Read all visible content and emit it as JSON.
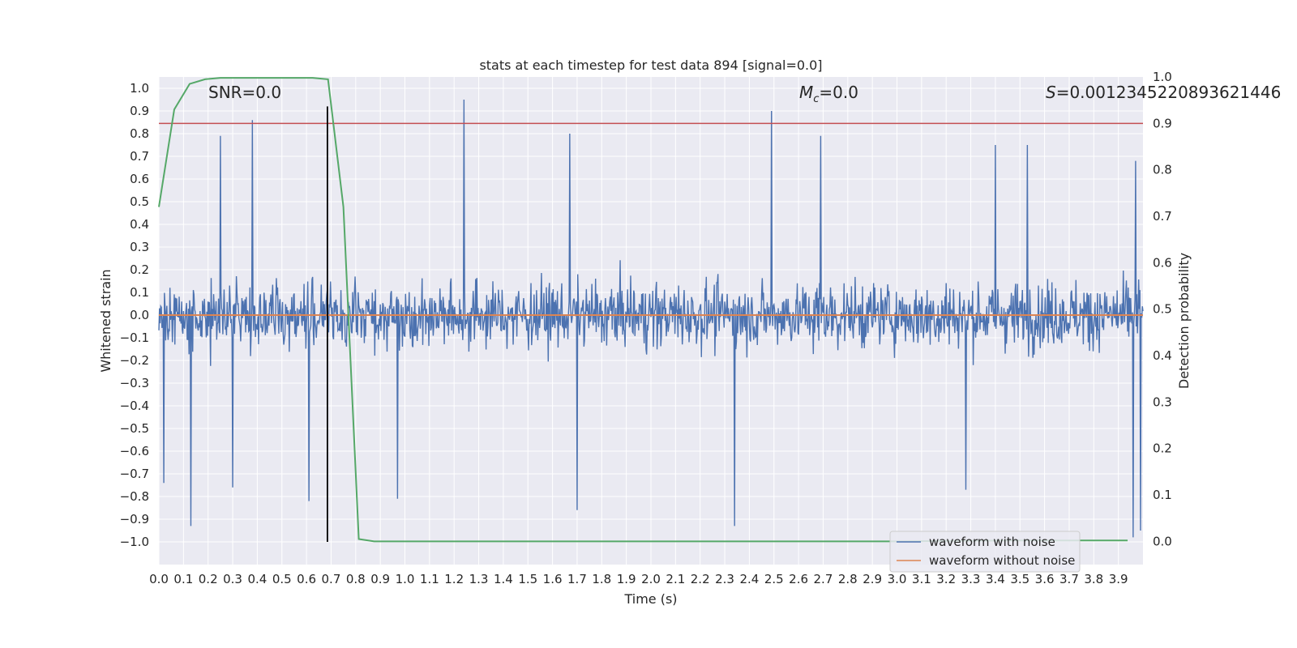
{
  "chart_data": {
    "type": "line",
    "title": "stats at each timestep for test data 894 [signal=0.0]",
    "xlabel": "Time (s)",
    "ylabel": "Whitened strain",
    "y2label": "Detection probability",
    "xlim": [
      0.0,
      4.0
    ],
    "ylim": [
      -1.1,
      1.05
    ],
    "y2lim": [
      -0.05,
      1.0
    ],
    "x_ticks": [
      0.0,
      0.1,
      0.2,
      0.3,
      0.4,
      0.5,
      0.6,
      0.7,
      0.8,
      0.9,
      1.0,
      1.1,
      1.2,
      1.3,
      1.4,
      1.5,
      1.6,
      1.7,
      1.8,
      1.9,
      2.0,
      2.1,
      2.2,
      2.3,
      2.4,
      2.5,
      2.6,
      2.7,
      2.8,
      2.9,
      3.0,
      3.1,
      3.2,
      3.3,
      3.4,
      3.5,
      3.6,
      3.7,
      3.8,
      3.9
    ],
    "y_ticks": [
      -1.0,
      -0.9,
      -0.8,
      -0.7,
      -0.6,
      -0.5,
      -0.4,
      -0.3,
      -0.2,
      -0.1,
      0.0,
      0.1,
      0.2,
      0.3,
      0.4,
      0.5,
      0.6,
      0.7,
      0.8,
      0.9,
      1.0
    ],
    "y2_ticks": [
      0.0,
      0.1,
      0.2,
      0.3,
      0.4,
      0.5,
      0.6,
      0.7,
      0.8,
      0.9,
      1.0
    ],
    "grid": true,
    "legend_placement": "lower-right",
    "annotations": {
      "snr": "SNR=0.0",
      "mc": "=0.0",
      "mc_symbol": "M",
      "mc_subscript": "c",
      "s": "=0.0012345220893621446",
      "s_symbol": "S"
    },
    "series": [
      {
        "name": "waveform with noise",
        "color": "#4c72b0",
        "axis": "left",
        "description_envelope": {
          "peaks_x": [
            0.25,
            0.38,
            1.24,
            1.67,
            2.49,
            2.69,
            3.4,
            3.53,
            3.97
          ],
          "peaks_y": [
            0.79,
            0.86,
            0.95,
            0.8,
            0.9,
            0.79,
            0.75,
            0.75,
            0.68
          ],
          "troughs_x": [
            0.02,
            0.13,
            0.3,
            0.61,
            0.97,
            1.7,
            2.34,
            3.28,
            3.96,
            3.99
          ],
          "troughs_y": [
            -0.74,
            -0.93,
            -0.76,
            -0.82,
            -0.81,
            -0.86,
            -0.93,
            -0.77,
            -0.98,
            -0.95
          ]
        }
      },
      {
        "name": "waveform without noise",
        "color": "#dd8452",
        "axis": "left",
        "x": [
          0.0,
          4.0
        ],
        "y": [
          0.0,
          0.0
        ]
      },
      {
        "color": "#55a868",
        "axis": "right",
        "x": [
          0.0,
          0.0625,
          0.125,
          0.1875,
          0.25,
          0.3125,
          0.375,
          0.4375,
          0.5,
          0.5625,
          0.625,
          0.6875,
          0.75,
          0.8125,
          0.875,
          0.9375,
          1.0,
          1.5,
          2.0,
          2.5,
          3.0,
          3.5,
          3.9375
        ],
        "y": [
          0.72,
          0.93,
          0.985,
          0.995,
          0.998,
          0.998,
          0.998,
          0.998,
          0.998,
          0.998,
          0.998,
          0.995,
          0.72,
          0.005,
          0.0,
          0.0,
          0.0,
          0.0,
          0.0,
          0.0,
          0.0,
          0.002,
          0.002
        ]
      }
    ],
    "threshold": {
      "axis": "right",
      "value": 0.9,
      "color": "#c44e52"
    },
    "marker": {
      "x": 0.685,
      "color": "#000000"
    }
  },
  "legend": {
    "item1": "waveform with noise",
    "item2": "waveform without noise"
  }
}
